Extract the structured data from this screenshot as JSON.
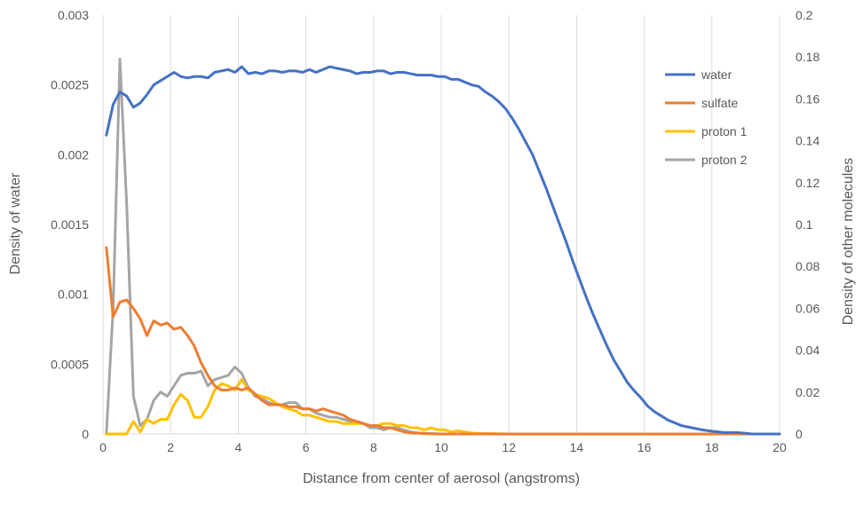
{
  "chart_data": {
    "type": "line",
    "title": "",
    "xlabel": "Distance from center of aerosol (angstroms)",
    "ylabel_left": "Density of water",
    "ylabel_right": "Density of other molecules",
    "xlim": [
      0,
      20
    ],
    "ylim_left": [
      0,
      0.003
    ],
    "ylim_right": [
      0,
      0.2
    ],
    "x_ticks": [
      "0",
      "2",
      "4",
      "6",
      "8",
      "10",
      "12",
      "14",
      "16",
      "18",
      "20"
    ],
    "y_left_ticks": [
      "0",
      "0.0005",
      "0.001",
      "0.0015",
      "0.002",
      "0.0025",
      "0.003"
    ],
    "y_right_ticks": [
      "0",
      "0.02",
      "0.04",
      "0.06",
      "0.08",
      "0.1",
      "0.12",
      "0.14",
      "0.16",
      "0.18",
      "0.2"
    ],
    "grid": "vertical",
    "legend_position": "right",
    "series": [
      {
        "name": "water",
        "axis": "left",
        "color": "#4472C4",
        "points": [
          [
            0.1,
            0.00214
          ],
          [
            0.3,
            0.00236
          ],
          [
            0.5,
            0.00245
          ],
          [
            0.7,
            0.00242
          ],
          [
            0.9,
            0.00234
          ],
          [
            1.1,
            0.00237
          ],
          [
            1.3,
            0.00243
          ],
          [
            1.5,
            0.0025
          ],
          [
            1.7,
            0.00253
          ],
          [
            1.9,
            0.00256
          ],
          [
            2.1,
            0.00259
          ],
          [
            2.3,
            0.00256
          ],
          [
            2.5,
            0.00255
          ],
          [
            2.7,
            0.00256
          ],
          [
            2.9,
            0.00256
          ],
          [
            3.1,
            0.00255
          ],
          [
            3.3,
            0.00259
          ],
          [
            3.5,
            0.0026
          ],
          [
            3.7,
            0.00261
          ],
          [
            3.9,
            0.00259
          ],
          [
            4.1,
            0.00263
          ],
          [
            4.3,
            0.00258
          ],
          [
            4.5,
            0.00259
          ],
          [
            4.7,
            0.00258
          ],
          [
            4.9,
            0.0026
          ],
          [
            5.1,
            0.0026
          ],
          [
            5.3,
            0.00259
          ],
          [
            5.5,
            0.0026
          ],
          [
            5.7,
            0.0026
          ],
          [
            5.9,
            0.00259
          ],
          [
            6.1,
            0.00261
          ],
          [
            6.3,
            0.00259
          ],
          [
            6.5,
            0.00261
          ],
          [
            6.7,
            0.00263
          ],
          [
            6.9,
            0.00262
          ],
          [
            7.1,
            0.00261
          ],
          [
            7.3,
            0.0026
          ],
          [
            7.5,
            0.00258
          ],
          [
            7.7,
            0.00259
          ],
          [
            7.9,
            0.00259
          ],
          [
            8.1,
            0.0026
          ],
          [
            8.3,
            0.0026
          ],
          [
            8.5,
            0.00258
          ],
          [
            8.7,
            0.00259
          ],
          [
            8.9,
            0.00259
          ],
          [
            9.1,
            0.00258
          ],
          [
            9.3,
            0.00257
          ],
          [
            9.5,
            0.00257
          ],
          [
            9.7,
            0.00257
          ],
          [
            9.9,
            0.00256
          ],
          [
            10.1,
            0.00256
          ],
          [
            10.3,
            0.00254
          ],
          [
            10.5,
            0.00254
          ],
          [
            10.7,
            0.00252
          ],
          [
            10.9,
            0.0025
          ],
          [
            11.1,
            0.00249
          ],
          [
            11.3,
            0.00245
          ],
          [
            11.5,
            0.00242
          ],
          [
            11.7,
            0.00238
          ],
          [
            11.9,
            0.00233
          ],
          [
            12.1,
            0.00226
          ],
          [
            12.3,
            0.00218
          ],
          [
            12.5,
            0.00209
          ],
          [
            12.7,
            0.002
          ],
          [
            12.9,
            0.00188
          ],
          [
            13.1,
            0.00176
          ],
          [
            13.3,
            0.00163
          ],
          [
            13.5,
            0.0015
          ],
          [
            13.7,
            0.00137
          ],
          [
            13.9,
            0.00123
          ],
          [
            14.1,
            0.0011
          ],
          [
            14.3,
            0.00097
          ],
          [
            14.5,
            0.00085
          ],
          [
            14.7,
            0.00074
          ],
          [
            14.9,
            0.00063
          ],
          [
            15.1,
            0.00053
          ],
          [
            15.3,
            0.00045
          ],
          [
            15.5,
            0.00037
          ],
          [
            15.7,
            0.00031
          ],
          [
            15.9,
            0.00026
          ],
          [
            16.1,
            0.0002
          ],
          [
            16.3,
            0.00016
          ],
          [
            16.5,
            0.00013
          ],
          [
            16.7,
            0.0001
          ],
          [
            16.9,
            8e-05
          ],
          [
            17.1,
            6e-05
          ],
          [
            17.3,
            5e-05
          ],
          [
            17.5,
            4e-05
          ],
          [
            17.7,
            3e-05
          ],
          [
            18.0,
            2e-05
          ],
          [
            18.4,
            1e-05
          ],
          [
            18.8,
            1e-05
          ],
          [
            19.2,
            0
          ],
          [
            20,
            0
          ]
        ]
      },
      {
        "name": "sulfate",
        "axis": "right",
        "color": "#ED7D31",
        "points": [
          [
            0.1,
            0.089
          ],
          [
            0.3,
            0.056
          ],
          [
            0.5,
            0.063
          ],
          [
            0.7,
            0.064
          ],
          [
            0.9,
            0.06
          ],
          [
            1.1,
            0.055
          ],
          [
            1.3,
            0.047
          ],
          [
            1.5,
            0.054
          ],
          [
            1.7,
            0.052
          ],
          [
            1.9,
            0.053
          ],
          [
            2.1,
            0.05
          ],
          [
            2.3,
            0.051
          ],
          [
            2.5,
            0.047
          ],
          [
            2.7,
            0.042
          ],
          [
            2.9,
            0.034
          ],
          [
            3.1,
            0.028
          ],
          [
            3.3,
            0.023
          ],
          [
            3.5,
            0.021
          ],
          [
            3.7,
            0.021
          ],
          [
            3.9,
            0.022
          ],
          [
            4.1,
            0.021
          ],
          [
            4.3,
            0.022
          ],
          [
            4.5,
            0.019
          ],
          [
            4.7,
            0.016
          ],
          [
            4.9,
            0.014
          ],
          [
            5.1,
            0.014
          ],
          [
            5.3,
            0.014
          ],
          [
            5.5,
            0.013
          ],
          [
            5.7,
            0.013
          ],
          [
            5.9,
            0.012
          ],
          [
            6.1,
            0.012
          ],
          [
            6.3,
            0.011
          ],
          [
            6.5,
            0.012
          ],
          [
            6.7,
            0.011
          ],
          [
            6.9,
            0.01
          ],
          [
            7.1,
            0.009
          ],
          [
            7.3,
            0.007
          ],
          [
            7.5,
            0.006
          ],
          [
            7.7,
            0.005
          ],
          [
            7.9,
            0.004
          ],
          [
            8.1,
            0.004
          ],
          [
            8.3,
            0.003
          ],
          [
            8.5,
            0.003
          ],
          [
            8.7,
            0.002
          ],
          [
            8.9,
            0.001
          ],
          [
            9.1,
            0.0005
          ],
          [
            9.5,
            0.0002
          ],
          [
            10,
            0
          ],
          [
            20,
            0
          ]
        ]
      },
      {
        "name": "proton 1",
        "axis": "right",
        "color": "#FFC000",
        "points": [
          [
            0.1,
            0
          ],
          [
            0.3,
            0
          ],
          [
            0.5,
            0
          ],
          [
            0.7,
            0
          ],
          [
            0.9,
            0.006
          ],
          [
            1.1,
            0.001
          ],
          [
            1.3,
            0.007
          ],
          [
            1.5,
            0.005
          ],
          [
            1.7,
            0.007
          ],
          [
            1.9,
            0.007
          ],
          [
            2.1,
            0.014
          ],
          [
            2.3,
            0.019
          ],
          [
            2.5,
            0.016
          ],
          [
            2.7,
            0.008
          ],
          [
            2.9,
            0.008
          ],
          [
            3.1,
            0.013
          ],
          [
            3.3,
            0.021
          ],
          [
            3.5,
            0.024
          ],
          [
            3.7,
            0.023
          ],
          [
            3.9,
            0.021
          ],
          [
            4.1,
            0.026
          ],
          [
            4.3,
            0.021
          ],
          [
            4.5,
            0.019
          ],
          [
            4.7,
            0.018
          ],
          [
            4.9,
            0.017
          ],
          [
            5.1,
            0.015
          ],
          [
            5.3,
            0.013
          ],
          [
            5.5,
            0.012
          ],
          [
            5.7,
            0.011
          ],
          [
            5.9,
            0.009
          ],
          [
            6.1,
            0.009
          ],
          [
            6.3,
            0.008
          ],
          [
            6.5,
            0.007
          ],
          [
            6.7,
            0.006
          ],
          [
            6.9,
            0.006
          ],
          [
            7.1,
            0.005
          ],
          [
            7.3,
            0.005
          ],
          [
            7.5,
            0.005
          ],
          [
            7.7,
            0.005
          ],
          [
            7.9,
            0.004
          ],
          [
            8.1,
            0.004
          ],
          [
            8.3,
            0.005
          ],
          [
            8.5,
            0.005
          ],
          [
            8.7,
            0.004
          ],
          [
            8.9,
            0.004
          ],
          [
            9.1,
            0.003
          ],
          [
            9.3,
            0.003
          ],
          [
            9.5,
            0.002
          ],
          [
            9.7,
            0.003
          ],
          [
            9.9,
            0.002
          ],
          [
            10.1,
            0.002
          ],
          [
            10.3,
            0.001
          ],
          [
            10.5,
            0.0015
          ],
          [
            10.7,
            0.001
          ],
          [
            10.9,
            0.0005
          ],
          [
            11.1,
            0.0003
          ],
          [
            11.5,
            0.0002
          ],
          [
            12,
            0
          ],
          [
            20,
            0
          ]
        ]
      },
      {
        "name": "proton 2",
        "axis": "right",
        "color": "#A5A5A5",
        "points": [
          [
            0.1,
            0
          ],
          [
            0.3,
            0.06
          ],
          [
            0.5,
            0.179
          ],
          [
            0.7,
            0.11
          ],
          [
            0.9,
            0.018
          ],
          [
            1.1,
            0.004
          ],
          [
            1.3,
            0.007
          ],
          [
            1.5,
            0.016
          ],
          [
            1.7,
            0.02
          ],
          [
            1.9,
            0.018
          ],
          [
            2.1,
            0.023
          ],
          [
            2.3,
            0.028
          ],
          [
            2.5,
            0.029
          ],
          [
            2.7,
            0.029
          ],
          [
            2.9,
            0.03
          ],
          [
            3.1,
            0.023
          ],
          [
            3.3,
            0.026
          ],
          [
            3.5,
            0.027
          ],
          [
            3.7,
            0.028
          ],
          [
            3.9,
            0.032
          ],
          [
            4.1,
            0.029
          ],
          [
            4.3,
            0.022
          ],
          [
            4.5,
            0.018
          ],
          [
            4.7,
            0.017
          ],
          [
            4.9,
            0.015
          ],
          [
            5.1,
            0.014
          ],
          [
            5.3,
            0.014
          ],
          [
            5.5,
            0.015
          ],
          [
            5.7,
            0.015
          ],
          [
            5.9,
            0.012
          ],
          [
            6.1,
            0.012
          ],
          [
            6.3,
            0.01
          ],
          [
            6.5,
            0.009
          ],
          [
            6.7,
            0.008
          ],
          [
            6.9,
            0.008
          ],
          [
            7.1,
            0.007
          ],
          [
            7.3,
            0.006
          ],
          [
            7.5,
            0.006
          ],
          [
            7.7,
            0.005
          ],
          [
            7.9,
            0.003
          ],
          [
            8.1,
            0.003
          ],
          [
            8.3,
            0.002
          ],
          [
            8.5,
            0.003
          ],
          [
            8.7,
            0.003
          ],
          [
            8.9,
            0.002
          ],
          [
            9.1,
            0.001
          ],
          [
            9.3,
            0.0005
          ],
          [
            9.5,
            0.0003
          ],
          [
            10,
            0
          ],
          [
            20,
            0
          ]
        ]
      }
    ]
  }
}
